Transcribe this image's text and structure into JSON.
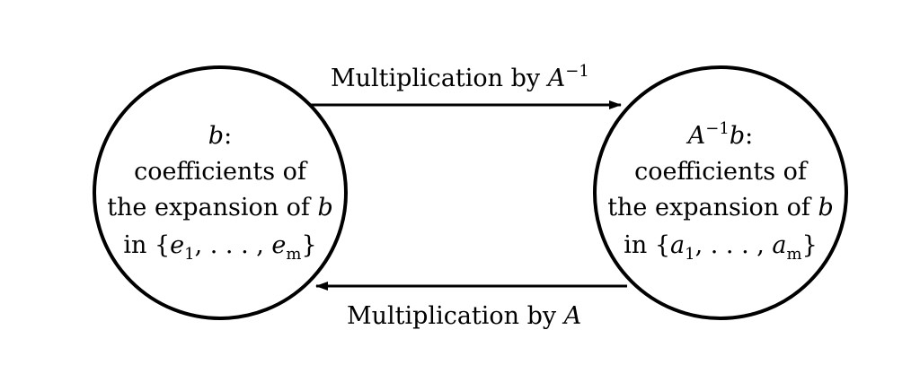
{
  "nodes": {
    "left": {
      "symbol_var": "b",
      "symbol_suffix": ":",
      "line2": "coefficients of",
      "line3_text": "the expansion of ",
      "line3_var": "b",
      "set": {
        "open": "in {",
        "first_var": "e",
        "first_sub": "1",
        "middle": ", . . . , ",
        "last_var": "e",
        "last_sub": "m",
        "close": "}"
      }
    },
    "right": {
      "symbol_var": "A",
      "symbol_sup": "−1",
      "symbol_var2": "b",
      "symbol_suffix": ":",
      "line2": "coefficients of",
      "line3_text": "the expansion of ",
      "line3_var": "b",
      "set": {
        "open": "in {",
        "first_var": "a",
        "first_sub": "1",
        "middle": ", . . . , ",
        "last_var": "a",
        "last_sub": "m",
        "close": "}"
      }
    }
  },
  "edges": {
    "top": {
      "text": "Multiplication by ",
      "var": "A",
      "sup": "−1"
    },
    "bottom": {
      "text": "Multiplication by ",
      "var": "A"
    }
  },
  "colors": {
    "stroke": "#000000",
    "background": "#ffffff"
  }
}
